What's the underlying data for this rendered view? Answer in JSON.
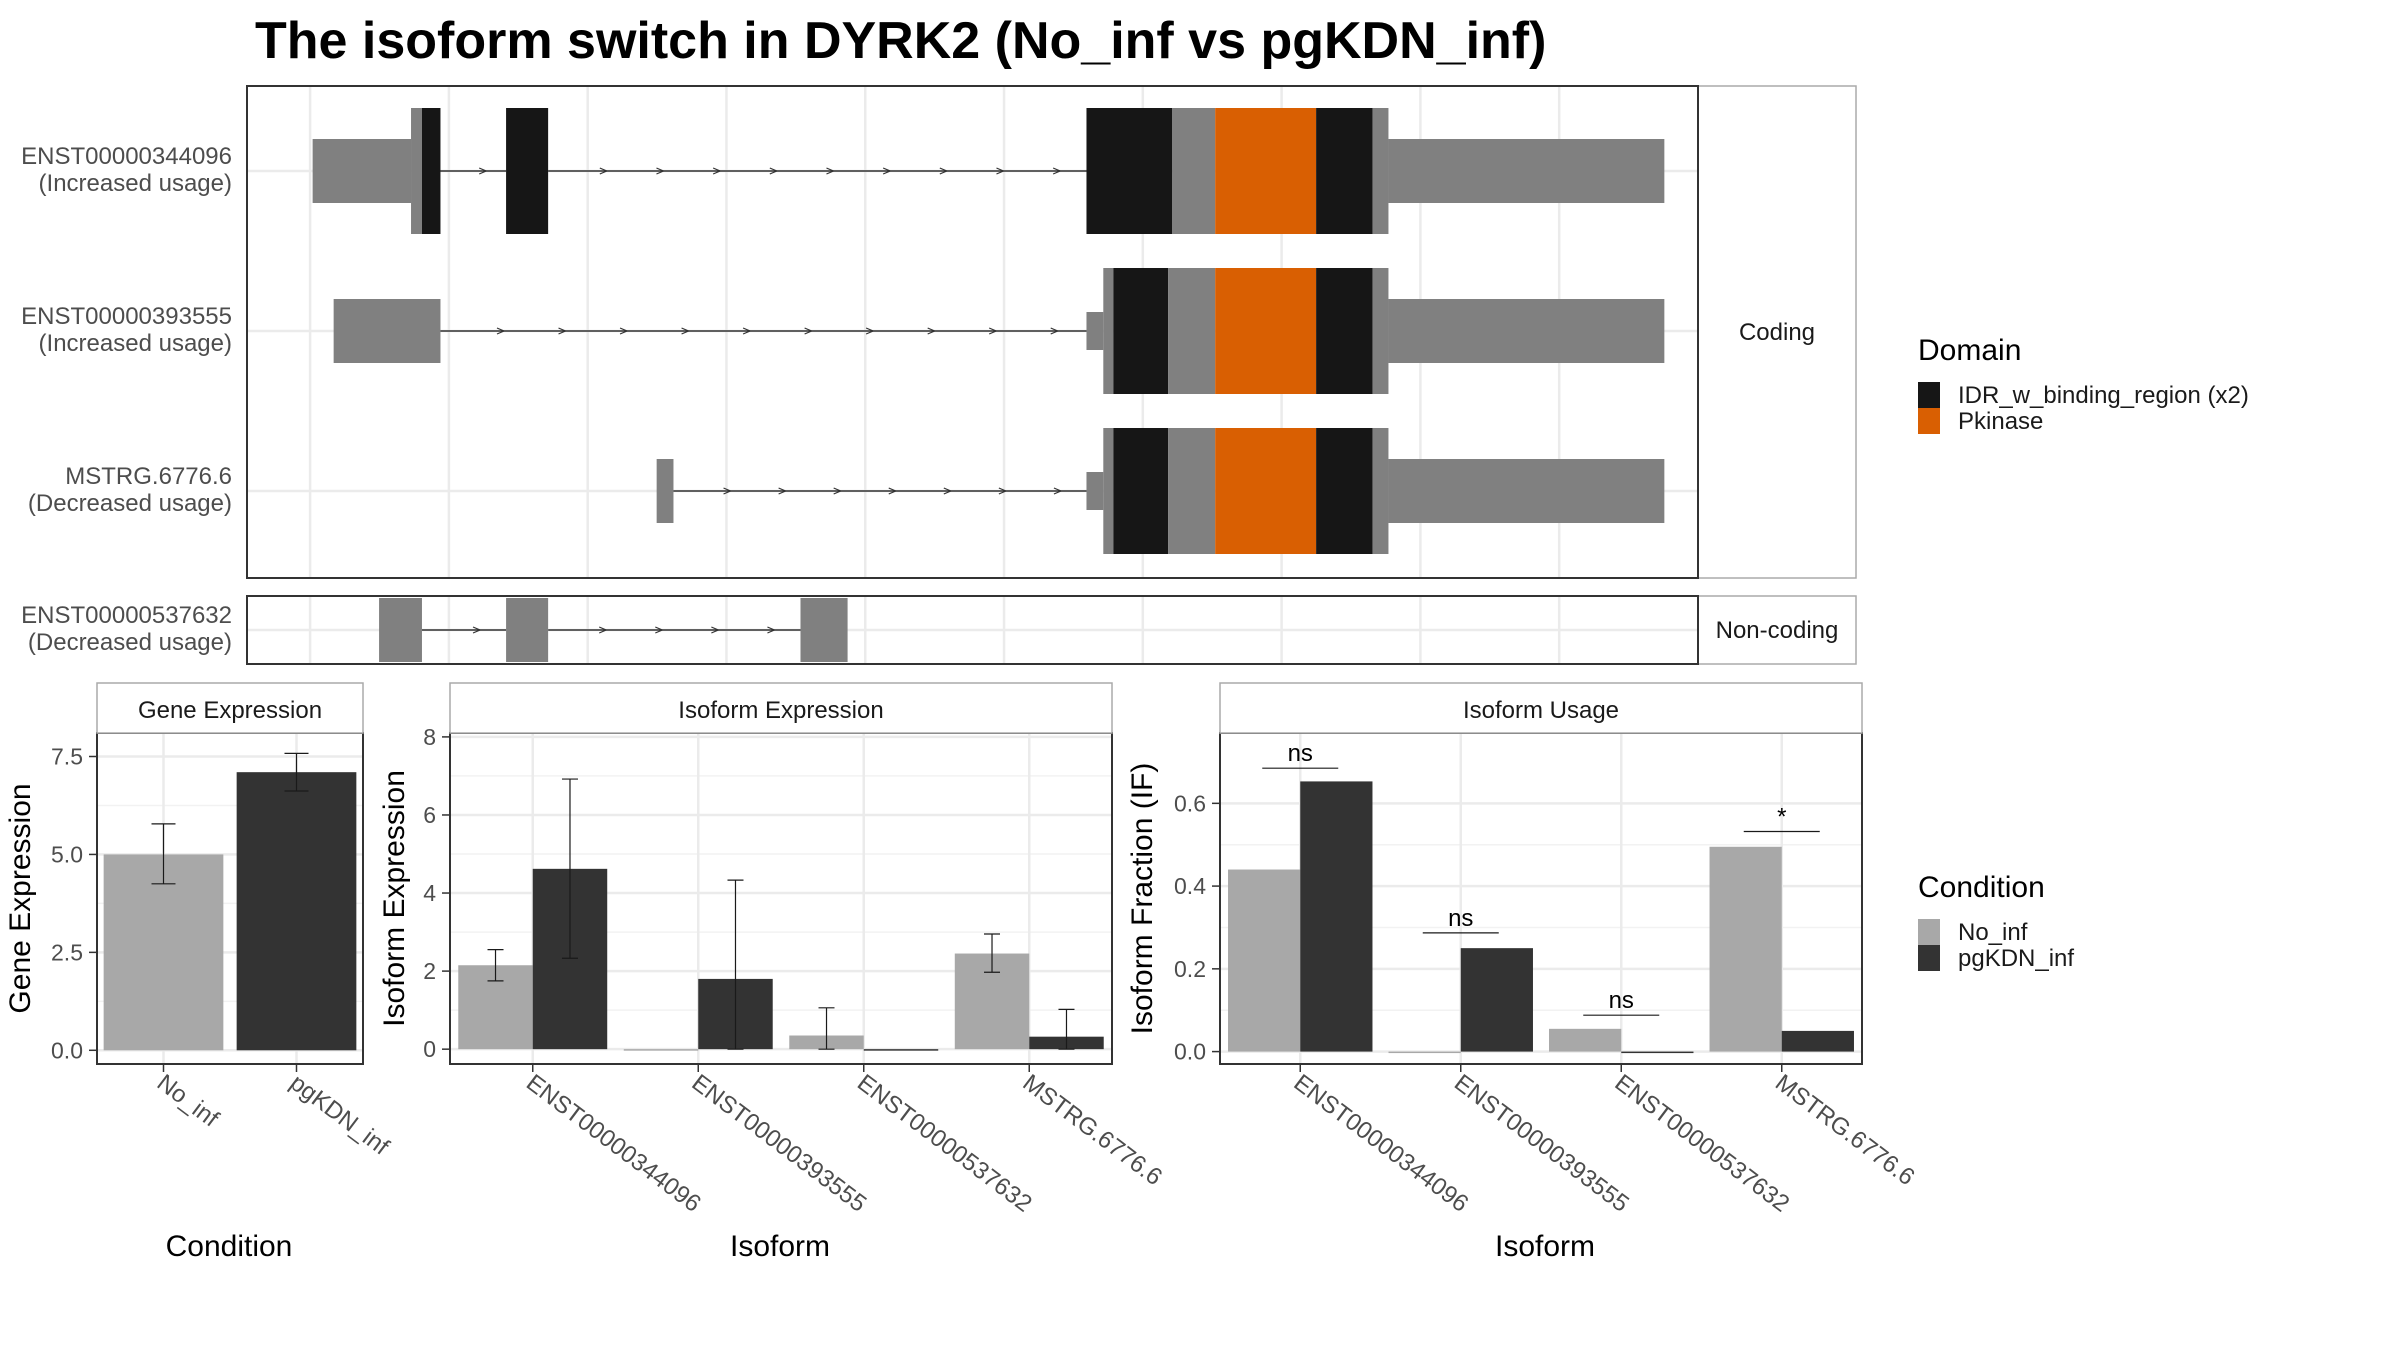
{
  "title": "The isoform switch in DYRK2 (No_inf vs pgKDN_inf)",
  "colors": {
    "utr": "#808080",
    "idr": "#161616",
    "pkinase": "#d95f02",
    "no_inf": "#a8a8a8",
    "pgkdn_inf": "#333333",
    "grid": "#ebebeb",
    "panel_border": "#333333",
    "strip_border": "#aaaaaa",
    "intron": "#333333"
  },
  "structure": {
    "coding_strip": "Coding",
    "noncoding_strip": "Non-coding",
    "isoforms": [
      {
        "id": "ENST00000344096",
        "usage": "(Increased usage)",
        "group": "coding",
        "exons": [
          {
            "s": 3,
            "e": 120,
            "t": "utr"
          },
          {
            "s": 120,
            "e": 133,
            "t": "utr"
          },
          {
            "s": 133,
            "e": 155,
            "t": "idr"
          },
          {
            "s": 233,
            "e": 283,
            "t": "idr"
          },
          {
            "s": 923,
            "e": 1025,
            "t": "idr"
          },
          {
            "s": 1025,
            "e": 1076,
            "t": "utr"
          },
          {
            "s": 1076,
            "e": 1196,
            "t": "pkinase"
          },
          {
            "s": 1196,
            "e": 1263,
            "t": "idr"
          },
          {
            "s": 1263,
            "e": 1282,
            "t": "utr"
          },
          {
            "s": 1282,
            "e": 1610,
            "t": "utr"
          }
        ],
        "introns": [
          [
            155,
            233
          ],
          [
            283,
            923
          ]
        ]
      },
      {
        "id": "ENST00000393555",
        "usage": "(Increased usage)",
        "group": "coding",
        "exons": [
          {
            "s": 28,
            "e": 155,
            "t": "utr"
          },
          {
            "s": 923,
            "e": 943,
            "t": "utr"
          },
          {
            "s": 943,
            "e": 955,
            "t": "utr"
          },
          {
            "s": 955,
            "e": 1020,
            "t": "idr"
          },
          {
            "s": 1020,
            "e": 1076,
            "t": "utr"
          },
          {
            "s": 1076,
            "e": 1196,
            "t": "pkinase"
          },
          {
            "s": 1196,
            "e": 1263,
            "t": "idr"
          },
          {
            "s": 1263,
            "e": 1282,
            "t": "utr"
          },
          {
            "s": 1282,
            "e": 1610,
            "t": "utr"
          }
        ],
        "introns": [
          [
            155,
            923
          ]
        ]
      },
      {
        "id": "MSTRG.6776.6",
        "usage": "(Decreased usage)",
        "group": "coding",
        "exons": [
          {
            "s": 412,
            "e": 432,
            "t": "utr"
          },
          {
            "s": 923,
            "e": 943,
            "t": "utr"
          },
          {
            "s": 943,
            "e": 955,
            "t": "utr"
          },
          {
            "s": 955,
            "e": 1020,
            "t": "idr"
          },
          {
            "s": 1020,
            "e": 1076,
            "t": "utr"
          },
          {
            "s": 1076,
            "e": 1196,
            "t": "pkinase"
          },
          {
            "s": 1196,
            "e": 1263,
            "t": "idr"
          },
          {
            "s": 1263,
            "e": 1282,
            "t": "utr"
          },
          {
            "s": 1282,
            "e": 1610,
            "t": "utr"
          }
        ],
        "introns": [
          [
            432,
            923
          ]
        ]
      },
      {
        "id": "ENST00000537632",
        "usage": "(Decreased usage)",
        "group": "noncoding",
        "exons": [
          {
            "s": 82,
            "e": 133,
            "t": "utr"
          },
          {
            "s": 233,
            "e": 283,
            "t": "utr"
          },
          {
            "s": 583,
            "e": 639,
            "t": "utr"
          }
        ],
        "introns": [
          [
            133,
            233
          ],
          [
            283,
            583
          ]
        ]
      }
    ],
    "xlim": [
      -75,
      1650
    ]
  },
  "domain_legend": {
    "title": "Domain",
    "items": [
      {
        "label": "IDR_w_binding_region (x2)",
        "color": "#161616"
      },
      {
        "label": "Pkinase",
        "color": "#d95f02"
      }
    ]
  },
  "condition_legend": {
    "title": "Condition",
    "items": [
      {
        "label": "No_inf",
        "color": "#a8a8a8"
      },
      {
        "label": "pgKDN_inf",
        "color": "#333333"
      }
    ]
  },
  "chart_data": [
    {
      "type": "bar",
      "title": "Gene Expression",
      "xlabel": "Condition",
      "ylabel": "Gene Expression",
      "categories": [
        "No_inf",
        "pgKDN_inf"
      ],
      "values": [
        5.0,
        7.1
      ],
      "error_low": [
        4.25,
        6.62
      ],
      "error_high": [
        5.78,
        7.58
      ],
      "ylim": [
        -0.35,
        8.1
      ],
      "yticks": [
        0.0,
        2.5,
        5.0,
        7.5
      ],
      "ytick_labels": [
        "0.0",
        "2.5",
        "5.0",
        "7.5"
      ]
    },
    {
      "type": "bar",
      "title": "Isoform Expression",
      "xlabel": "Isoform",
      "ylabel": "Isoform Expression",
      "categories": [
        "ENST00000344096",
        "ENST00000393555",
        "ENST00000537632",
        "MSTRG.6776.6"
      ],
      "series": [
        {
          "name": "No_inf",
          "values": [
            2.15,
            0.0,
            0.35,
            2.45
          ],
          "error_low": [
            1.75,
            0.0,
            0.0,
            1.97
          ],
          "error_high": [
            2.55,
            0.0,
            1.06,
            2.95
          ]
        },
        {
          "name": "pgKDN_inf",
          "values": [
            4.62,
            1.8,
            0.0,
            0.32
          ],
          "error_low": [
            2.33,
            0.0,
            0.0,
            0.0
          ],
          "error_high": [
            6.92,
            4.33,
            0.0,
            1.02
          ]
        }
      ],
      "ylim": [
        -0.38,
        8.1
      ],
      "yticks": [
        0,
        2,
        4,
        6,
        8
      ],
      "ytick_labels": [
        "0",
        "2",
        "4",
        "6",
        "8"
      ]
    },
    {
      "type": "bar",
      "title": "Isoform Usage",
      "xlabel": "Isoform",
      "ylabel": "Isoform Fraction (IF)",
      "categories": [
        "ENST00000344096",
        "ENST00000393555",
        "ENST00000537632",
        "MSTRG.6776.6"
      ],
      "series": [
        {
          "name": "No_inf",
          "values": [
            0.44,
            0.0,
            0.055,
            0.495
          ]
        },
        {
          "name": "pgKDN_inf",
          "values": [
            0.653,
            0.25,
            0.0,
            0.05
          ]
        }
      ],
      "significance": [
        "ns",
        "ns",
        "ns",
        "*"
      ],
      "sig_line_value": [
        0.685,
        0.287,
        0.088,
        0.532
      ],
      "ylim": [
        -0.03,
        0.77
      ],
      "yticks": [
        0.0,
        0.2,
        0.4,
        0.6
      ],
      "ytick_labels": [
        "0.0",
        "0.2",
        "0.4",
        "0.6"
      ]
    }
  ]
}
